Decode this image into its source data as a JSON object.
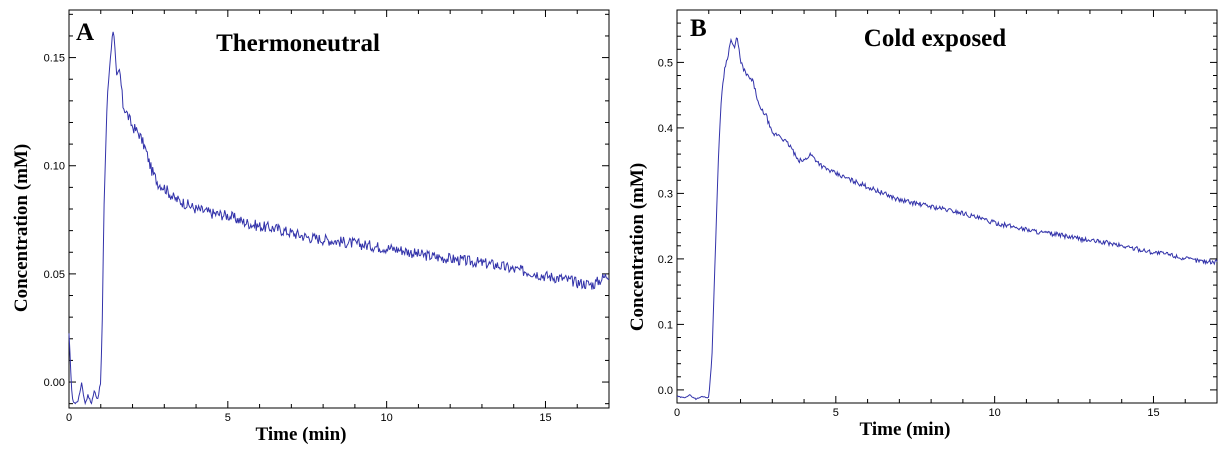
{
  "chart_data": [
    {
      "type": "line",
      "panel_label": "A",
      "title": "Thermoneutral",
      "xlabel": "Time (min)",
      "ylabel": "Concentration (mM)",
      "xlim": [
        0,
        17
      ],
      "ylim": [
        -0.012,
        0.172
      ],
      "x_ticks": [
        0,
        5,
        10,
        15
      ],
      "x_tick_labels": [
        "0",
        "5",
        "10",
        "15"
      ],
      "y_ticks": [
        0.0,
        0.05,
        0.1,
        0.15
      ],
      "y_tick_labels": [
        "0.00",
        "0.05",
        "0.10",
        "0.15"
      ],
      "grid": false,
      "series_color": "#3333aa",
      "series": [
        {
          "x": [
            0,
            0.1,
            0.2,
            0.3,
            0.4,
            0.5,
            0.6,
            0.7,
            0.8,
            0.9,
            1.0,
            1.05,
            1.1,
            1.2,
            1.3,
            1.4,
            1.5,
            1.6,
            1.7,
            1.8,
            2.0,
            2.2,
            2.4,
            2.6,
            2.8,
            3.0,
            3.3,
            3.6,
            4.0,
            4.5,
            5.0,
            5.5,
            6.0,
            6.5,
            7.0,
            7.5,
            8.0,
            8.5,
            9.0,
            9.5,
            10.0,
            10.5,
            11.0,
            11.5,
            12.0,
            12.5,
            13.0,
            13.5,
            14.0,
            14.5,
            15.0,
            15.5,
            16.0,
            16.5,
            17.0
          ],
          "y": [
            0.022,
            -0.008,
            -0.01,
            -0.008,
            0.0,
            -0.01,
            -0.006,
            -0.01,
            -0.004,
            -0.008,
            0.0,
            0.03,
            0.08,
            0.13,
            0.15,
            0.165,
            0.14,
            0.144,
            0.128,
            0.125,
            0.118,
            0.115,
            0.108,
            0.098,
            0.092,
            0.09,
            0.085,
            0.083,
            0.08,
            0.078,
            0.077,
            0.074,
            0.072,
            0.071,
            0.069,
            0.067,
            0.066,
            0.065,
            0.064,
            0.063,
            0.062,
            0.061,
            0.059,
            0.058,
            0.057,
            0.056,
            0.055,
            0.054,
            0.052,
            0.051,
            0.049,
            0.048,
            0.046,
            0.045,
            0.05
          ]
        }
      ]
    },
    {
      "type": "line",
      "panel_label": "B",
      "title": "Cold exposed",
      "xlabel": "Time (min)",
      "ylabel": "Concentration (mM)",
      "xlim": [
        0,
        17
      ],
      "ylim": [
        -0.02,
        0.58
      ],
      "x_ticks": [
        0,
        5,
        10,
        15
      ],
      "x_tick_labels": [
        "0",
        "5",
        "10",
        "15"
      ],
      "y_ticks": [
        0.0,
        0.1,
        0.2,
        0.3,
        0.4,
        0.5
      ],
      "y_tick_labels": [
        "0.0",
        "0.1",
        "0.2",
        "0.3",
        "0.4",
        "0.5"
      ],
      "grid": false,
      "series_color": "#3333aa",
      "series": [
        {
          "x": [
            0,
            0.2,
            0.4,
            0.6,
            0.8,
            1.0,
            1.1,
            1.2,
            1.3,
            1.4,
            1.5,
            1.6,
            1.7,
            1.8,
            1.9,
            2.0,
            2.2,
            2.4,
            2.6,
            2.8,
            3.0,
            3.2,
            3.4,
            3.6,
            3.8,
            4.0,
            4.2,
            4.4,
            4.6,
            5.0,
            5.5,
            6.0,
            6.5,
            7.0,
            7.5,
            8.0,
            8.5,
            9.0,
            9.5,
            10.0,
            10.5,
            11.0,
            11.5,
            12.0,
            12.5,
            13.0,
            13.5,
            14.0,
            14.5,
            15.0,
            15.5,
            16.0,
            16.5,
            17.0
          ],
          "y": [
            -0.01,
            -0.012,
            -0.008,
            -0.014,
            -0.01,
            -0.012,
            0.05,
            0.2,
            0.35,
            0.45,
            0.49,
            0.51,
            0.535,
            0.52,
            0.54,
            0.5,
            0.48,
            0.47,
            0.43,
            0.42,
            0.39,
            0.39,
            0.38,
            0.37,
            0.35,
            0.35,
            0.36,
            0.35,
            0.34,
            0.33,
            0.32,
            0.31,
            0.3,
            0.29,
            0.285,
            0.28,
            0.275,
            0.27,
            0.262,
            0.255,
            0.25,
            0.245,
            0.24,
            0.237,
            0.232,
            0.228,
            0.225,
            0.22,
            0.215,
            0.21,
            0.207,
            0.2,
            0.197,
            0.195
          ]
        }
      ]
    }
  ]
}
